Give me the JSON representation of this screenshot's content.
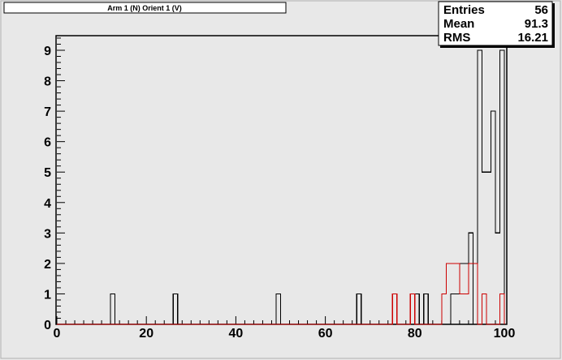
{
  "title": "Arm 1 (N) Orient 1 (V)",
  "stats": {
    "entries_label": "Entries",
    "entries_value": "56",
    "mean_label": "Mean",
    "mean_value": "91.3",
    "rms_label": "RMS",
    "rms_value": "16.21"
  },
  "chart_data": {
    "type": "histogram",
    "title": "Arm 1 (N) Orient 1 (V)",
    "xlim": [
      0,
      101
    ],
    "ylim": [
      0,
      9.5
    ],
    "bin_width": 1,
    "x_ticks": [
      0,
      20,
      40,
      60,
      80,
      100
    ],
    "y_ticks": [
      0,
      1,
      2,
      3,
      4,
      5,
      6,
      7,
      8,
      9
    ],
    "series": [
      {
        "color": "#000000",
        "bins": [
          {
            "x": 12,
            "y": 1
          },
          {
            "x": 26,
            "y": 1
          },
          {
            "x": 49,
            "y": 1
          },
          {
            "x": 67,
            "y": 1
          },
          {
            "x": 80,
            "y": 1
          },
          {
            "x": 82,
            "y": 1
          },
          {
            "x": 88,
            "y": 1
          },
          {
            "x": 89,
            "y": 1
          },
          {
            "x": 90,
            "y": 2
          },
          {
            "x": 91,
            "y": 2
          },
          {
            "x": 92,
            "y": 3
          },
          {
            "x": 94,
            "y": 9
          },
          {
            "x": 95,
            "y": 5
          },
          {
            "x": 96,
            "y": 5
          },
          {
            "x": 97,
            "y": 7
          },
          {
            "x": 98,
            "y": 3
          },
          {
            "x": 99,
            "y": 9
          }
        ]
      },
      {
        "color": "#cc0000",
        "bins": [
          {
            "x": 75,
            "y": 1
          },
          {
            "x": 79,
            "y": 1
          },
          {
            "x": 86,
            "y": 1
          },
          {
            "x": 87,
            "y": 2
          },
          {
            "x": 88,
            "y": 2
          },
          {
            "x": 89,
            "y": 2
          },
          {
            "x": 90,
            "y": 1
          },
          {
            "x": 91,
            "y": 1
          },
          {
            "x": 92,
            "y": 2
          },
          {
            "x": 93,
            "y": 2
          },
          {
            "x": 95,
            "y": 1
          },
          {
            "x": 99,
            "y": 1
          }
        ]
      }
    ]
  }
}
